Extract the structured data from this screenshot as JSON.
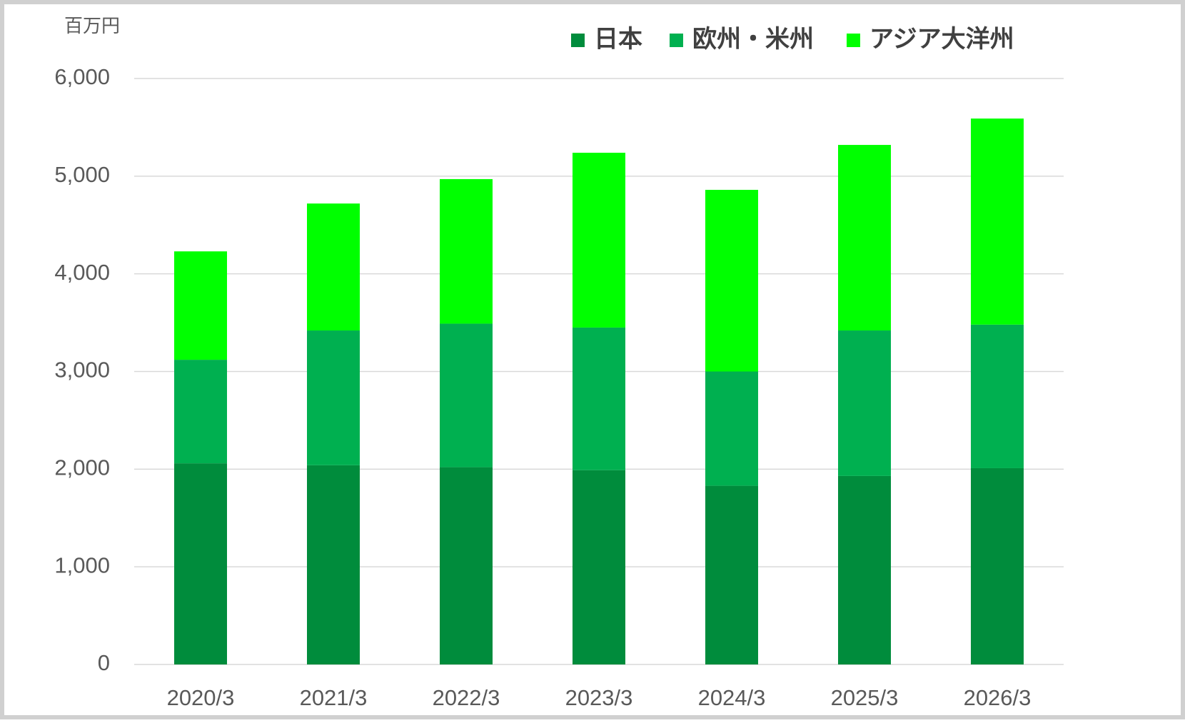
{
  "chart_data": {
    "type": "stacked-bar",
    "y_unit": "百万円",
    "categories": [
      "2020/3",
      "2021/3",
      "2022/3",
      "2023/3",
      "2024/3",
      "2025/3",
      "2026/3"
    ],
    "series": [
      {
        "name": "日本",
        "color": "#008c3c",
        "values": [
          2060,
          2040,
          2020,
          1990,
          1830,
          1930,
          2010
        ]
      },
      {
        "name": "欧州・米州",
        "color": "#00b050",
        "values": [
          1060,
          1380,
          1470,
          1460,
          1170,
          1490,
          1470
        ]
      },
      {
        "name": "アジア大洋州",
        "color": "#00ff00",
        "values": [
          1110,
          1300,
          1480,
          1790,
          1860,
          1900,
          2110
        ]
      }
    ],
    "ylim": [
      0,
      6000
    ],
    "yticks": [
      0,
      {
        "value": 1000,
        "label": "1,000"
      },
      {
        "value": 2000,
        "label": "2,000"
      },
      {
        "value": 3000,
        "label": "3,000"
      },
      {
        "value": 4000,
        "label": "4,000"
      },
      {
        "value": 5000,
        "label": "5,000"
      },
      {
        "value": 6000,
        "label": "6,000"
      }
    ],
    "grid": true
  }
}
